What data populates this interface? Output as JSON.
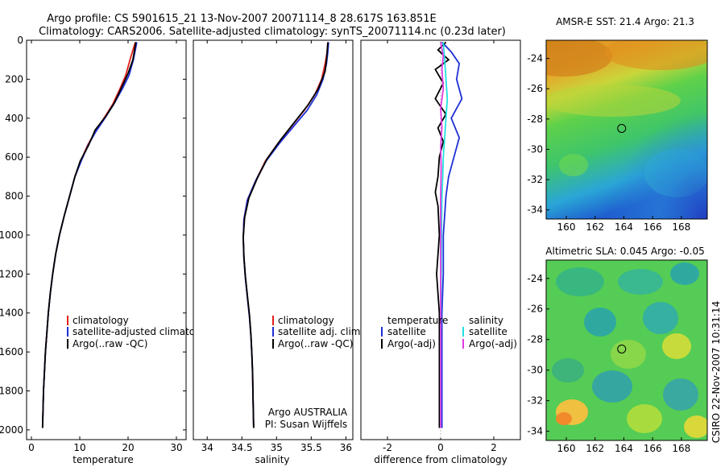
{
  "figure": {
    "title_line1": "Argo profile: CS 5901615_21 13-Nov-2007 20071114_8 28.617S 163.851E",
    "title_line2": "Climatology: CARS2006. Satellite-adjusted climatology: synTS_20071114.nc (0.23d later)",
    "side_stamp": "CSIRO 22-Nov-2007 10:31:14",
    "agency": "Argo AUSTRALIA",
    "pi": "PI: Susan Wijffels"
  },
  "colors": {
    "climatology": "#e0201b",
    "satellite": "#1f2fd6",
    "argo": "#000000",
    "sat_cyan": "#22e0e0",
    "argo_adj_magenta": "#e03ce0"
  },
  "chart_data": [
    {
      "type": "line",
      "xlabel": "temperature",
      "ylabel": "",
      "xlim": [
        -1,
        32
      ],
      "ylim": [
        2050,
        0
      ],
      "y_reversed": true,
      "xticks": [
        0,
        10,
        20,
        30
      ],
      "yticks": [
        0,
        200,
        400,
        600,
        800,
        1000,
        1200,
        1400,
        1600,
        1800,
        2000
      ],
      "legend": [
        "climatology",
        "satellite-adjusted climatology",
        "Argo(..raw -QC)"
      ],
      "series": [
        {
          "name": "climatology",
          "color_key": "climatology",
          "points": [
            [
              21.5,
              10
            ],
            [
              21.0,
              50
            ],
            [
              20.4,
              100
            ],
            [
              19.5,
              180
            ],
            [
              18.3,
              250
            ],
            [
              16.8,
              330
            ],
            [
              15.0,
              400
            ],
            [
              13.2,
              470
            ],
            [
              11.6,
              540
            ],
            [
              10.2,
              620
            ],
            [
              9.0,
              700
            ],
            [
              7.9,
              800
            ],
            [
              6.8,
              900
            ],
            [
              5.8,
              1000
            ],
            [
              5.0,
              1100
            ],
            [
              4.4,
              1200
            ],
            [
              3.9,
              1300
            ],
            [
              3.5,
              1400
            ],
            [
              3.2,
              1500
            ],
            [
              2.9,
              1600
            ],
            [
              2.7,
              1700
            ],
            [
              2.5,
              1800
            ],
            [
              2.4,
              1900
            ],
            [
              2.3,
              1990
            ]
          ]
        },
        {
          "name": "satellite-adjusted climatology",
          "color_key": "satellite",
          "points": [
            [
              21.8,
              10
            ],
            [
              21.5,
              50
            ],
            [
              21.1,
              100
            ],
            [
              20.2,
              180
            ],
            [
              18.8,
              250
            ],
            [
              17.0,
              330
            ],
            [
              15.2,
              400
            ],
            [
              13.3,
              470
            ],
            [
              11.7,
              540
            ],
            [
              10.3,
              620
            ],
            [
              9.0,
              700
            ],
            [
              7.9,
              800
            ],
            [
              6.8,
              900
            ],
            [
              5.8,
              1000
            ],
            [
              5.0,
              1100
            ],
            [
              4.4,
              1200
            ],
            [
              3.9,
              1300
            ],
            [
              3.5,
              1400
            ],
            [
              3.2,
              1500
            ],
            [
              2.9,
              1600
            ],
            [
              2.7,
              1700
            ],
            [
              2.5,
              1800
            ],
            [
              2.4,
              1900
            ],
            [
              2.3,
              1990
            ]
          ]
        },
        {
          "name": "Argo(..raw -QC)",
          "color_key": "argo",
          "points": [
            [
              21.6,
              10
            ],
            [
              21.4,
              40
            ],
            [
              21.0,
              100
            ],
            [
              20.0,
              170
            ],
            [
              18.7,
              240
            ],
            [
              17.2,
              320
            ],
            [
              15.4,
              390
            ],
            [
              13.2,
              460
            ],
            [
              11.8,
              540
            ],
            [
              10.1,
              620
            ],
            [
              9.0,
              700
            ],
            [
              7.9,
              800
            ],
            [
              6.8,
              900
            ],
            [
              5.8,
              1000
            ],
            [
              5.0,
              1100
            ],
            [
              4.4,
              1200
            ],
            [
              3.9,
              1300
            ],
            [
              3.5,
              1400
            ],
            [
              3.2,
              1500
            ],
            [
              2.9,
              1600
            ],
            [
              2.7,
              1700
            ],
            [
              2.5,
              1800
            ],
            [
              2.4,
              1900
            ],
            [
              2.3,
              1990
            ]
          ]
        }
      ]
    },
    {
      "type": "line",
      "xlabel": "salinity",
      "ylabel": "",
      "xlim": [
        33.8,
        36.1
      ],
      "ylim": [
        2050,
        0
      ],
      "y_reversed": true,
      "xticks": [
        34,
        34.5,
        35,
        35.5,
        36
      ],
      "yticks": [],
      "legend": [
        "climatology",
        "satellite adj. clim.",
        "Argo(..raw -QC)"
      ],
      "series": [
        {
          "name": "climatology",
          "color_key": "climatology",
          "points": [
            [
              35.74,
              10
            ],
            [
              35.73,
              60
            ],
            [
              35.7,
              120
            ],
            [
              35.65,
              200
            ],
            [
              35.55,
              280
            ],
            [
              35.4,
              360
            ],
            [
              35.22,
              440
            ],
            [
              35.02,
              530
            ],
            [
              34.84,
              620
            ],
            [
              34.7,
              720
            ],
            [
              34.58,
              820
            ],
            [
              34.53,
              920
            ],
            [
              34.52,
              1020
            ],
            [
              34.53,
              1120
            ],
            [
              34.55,
              1220
            ],
            [
              34.58,
              1320
            ],
            [
              34.61,
              1420
            ],
            [
              34.63,
              1520
            ],
            [
              34.645,
              1620
            ],
            [
              34.655,
              1720
            ],
            [
              34.66,
              1820
            ],
            [
              34.665,
              1920
            ],
            [
              34.67,
              1990
            ]
          ]
        },
        {
          "name": "satellite adj. clim.",
          "color_key": "satellite",
          "points": [
            [
              35.75,
              10
            ],
            [
              35.74,
              60
            ],
            [
              35.72,
              120
            ],
            [
              35.67,
              200
            ],
            [
              35.58,
              280
            ],
            [
              35.44,
              360
            ],
            [
              35.25,
              440
            ],
            [
              35.04,
              530
            ],
            [
              34.85,
              620
            ],
            [
              34.7,
              720
            ],
            [
              34.58,
              820
            ],
            [
              34.53,
              920
            ],
            [
              34.52,
              1020
            ],
            [
              34.53,
              1120
            ],
            [
              34.55,
              1220
            ],
            [
              34.58,
              1320
            ],
            [
              34.61,
              1420
            ],
            [
              34.63,
              1520
            ],
            [
              34.645,
              1620
            ],
            [
              34.655,
              1720
            ],
            [
              34.66,
              1820
            ],
            [
              34.665,
              1920
            ],
            [
              34.67,
              1990
            ]
          ]
        },
        {
          "name": "Argo(..raw -QC)",
          "color_key": "argo",
          "points": [
            [
              35.74,
              10
            ],
            [
              35.73,
              60
            ],
            [
              35.72,
              100
            ],
            [
              35.7,
              160
            ],
            [
              35.6,
              250
            ],
            [
              35.46,
              330
            ],
            [
              35.26,
              420
            ],
            [
              35.06,
              510
            ],
            [
              34.86,
              610
            ],
            [
              34.72,
              710
            ],
            [
              34.6,
              810
            ],
            [
              34.54,
              910
            ],
            [
              34.52,
              1010
            ],
            [
              34.53,
              1110
            ],
            [
              34.55,
              1210
            ],
            [
              34.58,
              1310
            ],
            [
              34.61,
              1410
            ],
            [
              34.63,
              1510
            ],
            [
              34.645,
              1610
            ],
            [
              34.655,
              1710
            ],
            [
              34.66,
              1810
            ],
            [
              34.665,
              1910
            ],
            [
              34.67,
              1990
            ]
          ]
        }
      ]
    },
    {
      "type": "line",
      "xlabel": "difference from climatology",
      "ylabel": "",
      "xlim": [
        -3,
        3
      ],
      "ylim": [
        2050,
        0
      ],
      "y_reversed": true,
      "xticks": [
        -2,
        0,
        2
      ],
      "yticks": [],
      "legend_left_title": "temperature",
      "legend_left": [
        "satellite",
        "Argo(-adj)"
      ],
      "legend_right_title": "salinity",
      "legend_right": [
        "satellite",
        "Argo(-adj)"
      ],
      "series": [
        {
          "name": "temperature satellite",
          "color_key": "satellite",
          "points": [
            [
              0.05,
              10
            ],
            [
              0.4,
              60
            ],
            [
              0.7,
              120
            ],
            [
              0.6,
              200
            ],
            [
              0.8,
              300
            ],
            [
              0.4,
              400
            ],
            [
              0.7,
              500
            ],
            [
              0.5,
              600
            ],
            [
              0.3,
              700
            ],
            [
              0.2,
              800
            ],
            [
              0.15,
              900
            ],
            [
              0.1,
              1000
            ],
            [
              0.1,
              1200
            ],
            [
              0.05,
              1400
            ],
            [
              0.05,
              1600
            ],
            [
              0.05,
              1800
            ],
            [
              0.05,
              1990
            ]
          ]
        },
        {
          "name": "temperature Argo(-adj)",
          "color_key": "argo",
          "points": [
            [
              0.2,
              10
            ],
            [
              -0.1,
              50
            ],
            [
              0.3,
              100
            ],
            [
              -0.2,
              150
            ],
            [
              0.1,
              220
            ],
            [
              -0.2,
              300
            ],
            [
              0.2,
              380
            ],
            [
              -0.1,
              450
            ],
            [
              0.1,
              520
            ],
            [
              -0.05,
              600
            ],
            [
              -0.1,
              700
            ],
            [
              -0.2,
              780
            ],
            [
              -0.1,
              850
            ],
            [
              -0.05,
              1000
            ],
            [
              -0.1,
              1100
            ],
            [
              -0.15,
              1200
            ],
            [
              -0.1,
              1300
            ],
            [
              -0.05,
              1400
            ],
            [
              -0.05,
              1600
            ],
            [
              -0.05,
              1800
            ],
            [
              -0.05,
              1990
            ]
          ]
        },
        {
          "name": "salinity satellite",
          "color_key": "sat_cyan",
          "points": [
            [
              0.1,
              10
            ],
            [
              0.15,
              100
            ],
            [
              0.2,
              200
            ],
            [
              0.25,
              300
            ],
            [
              0.2,
              400
            ],
            [
              0.15,
              500
            ],
            [
              0.1,
              600
            ],
            [
              0.08,
              700
            ],
            [
              0.05,
              800
            ],
            [
              0.03,
              1000
            ],
            [
              0.02,
              1200
            ],
            [
              0.01,
              1400
            ],
            [
              0.0,
              1600
            ],
            [
              0.0,
              1800
            ],
            [
              0.0,
              1990
            ]
          ]
        },
        {
          "name": "salinity Argo(-adj)",
          "color_key": "argo_adj_magenta",
          "points": [
            [
              0.0,
              10
            ],
            [
              0.1,
              80
            ],
            [
              0.05,
              150
            ],
            [
              0.1,
              250
            ],
            [
              0.0,
              350
            ],
            [
              0.05,
              450
            ],
            [
              0.0,
              550
            ],
            [
              0.02,
              650
            ],
            [
              0.0,
              800
            ],
            [
              0.0,
              1000
            ],
            [
              0.0,
              1200
            ],
            [
              0.0,
              1400
            ],
            [
              0.0,
              1600
            ],
            [
              0.0,
              1800
            ],
            [
              0.0,
              1990
            ]
          ]
        }
      ]
    },
    {
      "type": "heatmap",
      "title": "AMSR-E SST: 21.4 Argo: 21.3",
      "xlim": [
        158.6,
        169.8
      ],
      "ylim": [
        -34.6,
        -22.8
      ],
      "xticks": [
        160,
        162,
        164,
        166,
        168
      ],
      "yticks": [
        -24,
        -26,
        -28,
        -30,
        -32,
        -34
      ],
      "marker": [
        163.85,
        -28.62
      ]
    },
    {
      "type": "heatmap",
      "title": "Altimetric SLA: 0.045 Argo: -0.05",
      "xlim": [
        158.6,
        169.8
      ],
      "ylim": [
        -34.6,
        -22.8
      ],
      "xticks": [
        160,
        162,
        164,
        166,
        168
      ],
      "yticks": [
        -24,
        -26,
        -28,
        -30,
        -32,
        -34
      ],
      "marker": [
        163.85,
        -28.62
      ]
    }
  ]
}
